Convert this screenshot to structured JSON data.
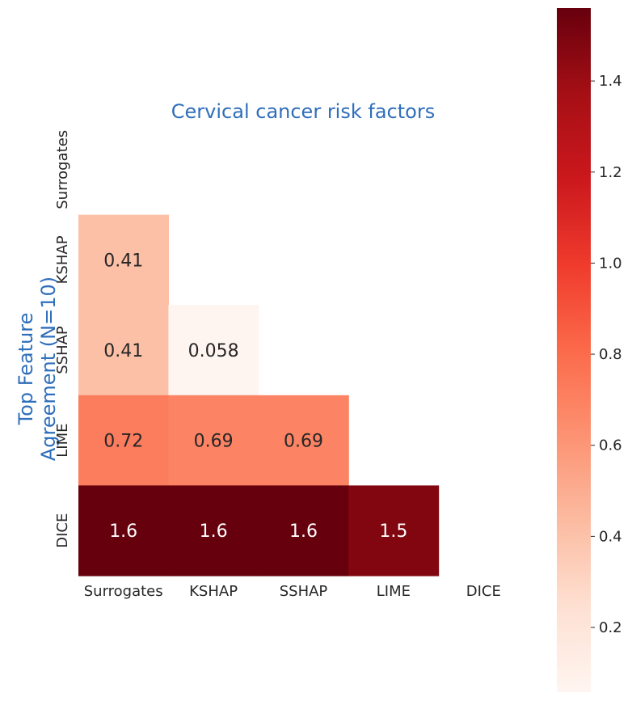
{
  "chart_data": {
    "type": "heatmap",
    "title": "Cervical cancer risk factors",
    "ylabel_lines": [
      "Top Feature",
      "Agreement (N=10)"
    ],
    "xlabel": "",
    "labels": [
      "Surrogates",
      "KSHAP",
      "SSHAP",
      "LIME",
      "DICE"
    ],
    "cells": [
      {
        "row": "KSHAP",
        "col": "Surrogates",
        "value": 0.41,
        "label": "0.41"
      },
      {
        "row": "SSHAP",
        "col": "Surrogates",
        "value": 0.41,
        "label": "0.41"
      },
      {
        "row": "SSHAP",
        "col": "KSHAP",
        "value": 0.058,
        "label": "0.058"
      },
      {
        "row": "LIME",
        "col": "Surrogates",
        "value": 0.72,
        "label": "0.72"
      },
      {
        "row": "LIME",
        "col": "KSHAP",
        "value": 0.69,
        "label": "0.69"
      },
      {
        "row": "LIME",
        "col": "SSHAP",
        "value": 0.69,
        "label": "0.69"
      },
      {
        "row": "DICE",
        "col": "Surrogates",
        "value": 1.56,
        "label": "1.6"
      },
      {
        "row": "DICE",
        "col": "KSHAP",
        "value": 1.56,
        "label": "1.6"
      },
      {
        "row": "DICE",
        "col": "SSHAP",
        "value": 1.56,
        "label": "1.6"
      },
      {
        "row": "DICE",
        "col": "LIME",
        "value": 1.48,
        "label": "1.5"
      }
    ],
    "mask": "upper-triangle-and-diagonal",
    "colormap": "Reds",
    "vmin": 0.058,
    "vmax": 1.56,
    "colorbar_ticks": [
      0.2,
      0.4,
      0.6,
      0.8,
      1.0,
      1.2,
      1.4
    ],
    "colorbar_tick_labels": [
      "0.2",
      "0.4",
      "0.6",
      "0.8",
      "1.0",
      "1.2",
      "1.4"
    ],
    "grid": false,
    "colors": {
      "title": "#2f6eba",
      "ylabel": "#2f6eba",
      "ticks": "#262626"
    }
  }
}
